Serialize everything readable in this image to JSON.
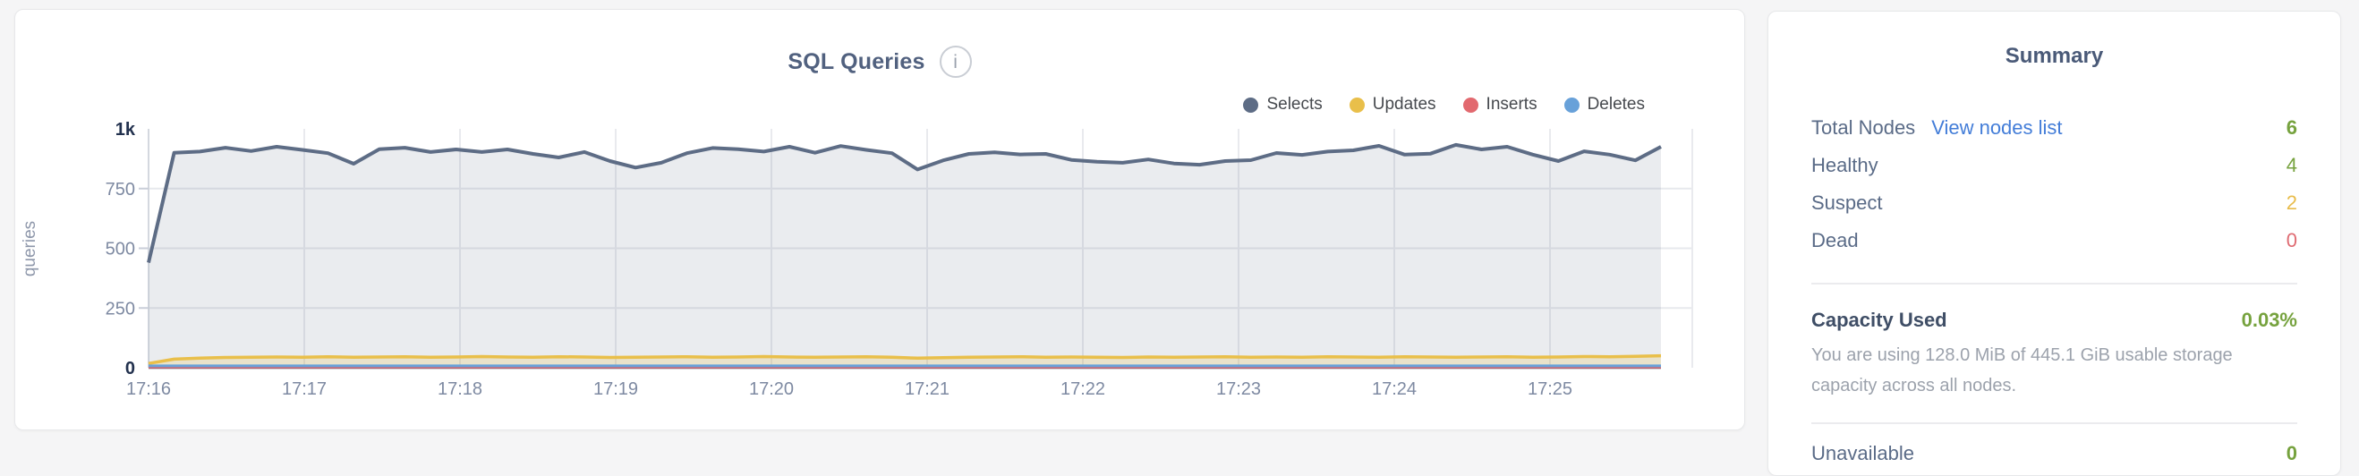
{
  "colors": {
    "selects": "#5d6c85",
    "updates": "#e9bf4a",
    "inserts": "#e2696f",
    "deletes": "#68a1d9",
    "green": "#76a23e",
    "yellow": "#e8bc4a",
    "red": "#df6b72",
    "link_blue": "#437dd8",
    "title_slate": "#51617f",
    "axis_text": "#7e8aa2",
    "axis_text_dark": "#22314e"
  },
  "chart_card": {
    "title": "SQL Queries",
    "info_icon_glyph": "i"
  },
  "chart_data": {
    "type": "area",
    "title": "SQL Queries",
    "ylabel": "queries",
    "ylim": [
      0,
      1000
    ],
    "grid": true,
    "legend_position": "top-right",
    "ytick_labels": [
      "1k",
      "750",
      "500",
      "250",
      "0"
    ],
    "ytick_values": [
      1000,
      750,
      500,
      250,
      0
    ],
    "x_tick_labels": [
      "17:16",
      "17:17",
      "17:18",
      "17:19",
      "17:20",
      "17:21",
      "17:22",
      "17:23",
      "17:24",
      "17:25"
    ],
    "x_start": "17:16",
    "x_end_approx": "17:25:45",
    "sample_interval_seconds": 10,
    "series": [
      {
        "name": "Selects",
        "color": "#5d6c85",
        "fill": "rgba(93,108,133,0.13)",
        "values": [
          440,
          900,
          905,
          921,
          907,
          925,
          912,
          898,
          854,
          915,
          921,
          903,
          914,
          903,
          914,
          895,
          880,
          903,
          865,
          838,
          858,
          898,
          920,
          915,
          905,
          925,
          900,
          928,
          912,
          898,
          830,
          868,
          895,
          902,
          893,
          895,
          870,
          862,
          858,
          872,
          855,
          850,
          865,
          869,
          899,
          891,
          905,
          910,
          929,
          892,
          896,
          933,
          914,
          925,
          892,
          865,
          906,
          892,
          868,
          925
        ]
      },
      {
        "name": "Updates",
        "color": "#e9bf4a",
        "fill": "rgba(233,191,74,0.22)",
        "values": [
          18,
          36,
          40,
          43,
          44,
          45,
          44,
          46,
          44,
          45,
          46,
          44,
          45,
          47,
          45,
          44,
          46,
          45,
          43,
          44,
          45,
          46,
          44,
          45,
          47,
          45,
          44,
          45,
          46,
          44,
          40,
          42,
          44,
          45,
          46,
          44,
          45,
          44,
          43,
          45,
          44,
          45,
          46,
          44,
          45,
          44,
          46,
          45,
          44,
          46,
          45,
          44,
          45,
          46,
          44,
          45,
          47,
          46,
          48,
          50
        ]
      },
      {
        "name": "Inserts",
        "color": "#e2696f",
        "fill": null,
        "values": [
          2,
          2,
          2,
          2,
          2,
          2,
          2,
          2,
          2,
          2,
          2,
          2,
          2,
          2,
          2,
          2,
          2,
          2,
          2,
          2,
          2,
          2,
          2,
          2,
          2,
          2,
          2,
          2,
          2,
          2,
          2,
          2,
          2,
          2,
          2,
          2,
          2,
          2,
          2,
          2,
          2,
          2,
          2,
          2,
          2,
          2,
          2,
          2,
          2,
          2,
          2,
          2,
          2,
          2,
          2,
          2,
          2,
          2,
          2,
          2
        ]
      },
      {
        "name": "Deletes",
        "color": "#68a1d9",
        "fill": null,
        "values": [
          8,
          8,
          8,
          8,
          8,
          8,
          8,
          8,
          8,
          8,
          8,
          8,
          8,
          8,
          8,
          8,
          8,
          8,
          8,
          8,
          8,
          8,
          8,
          8,
          8,
          8,
          8,
          8,
          8,
          8,
          8,
          8,
          8,
          8,
          8,
          8,
          8,
          8,
          8,
          8,
          8,
          8,
          8,
          8,
          8,
          8,
          8,
          8,
          8,
          8,
          8,
          8,
          8,
          8,
          8,
          8,
          8,
          8,
          8,
          8
        ]
      }
    ]
  },
  "summary": {
    "title": "Summary",
    "rows": [
      {
        "label": "Total Nodes",
        "link": "View nodes list",
        "value": "6"
      },
      {
        "label": "Healthy",
        "value": "4"
      },
      {
        "label": "Suspect",
        "value": "2"
      },
      {
        "label": "Dead",
        "value": "0"
      }
    ],
    "capacity": {
      "label": "Capacity Used",
      "value": "0.03%",
      "description": "You are using 128.0 MiB of 445.1 GiB usable storage capacity across all nodes."
    },
    "clipped_row": {
      "label": "Unavailable",
      "value": "0"
    }
  }
}
